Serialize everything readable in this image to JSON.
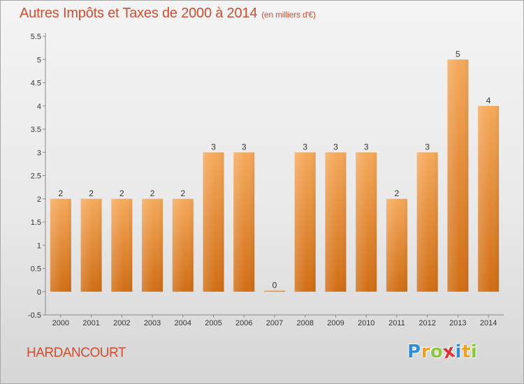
{
  "header": {
    "title": "Autres Impôts et Taxes de 2000 à 2014",
    "subtitle": "(en milliers d'€)"
  },
  "footer": {
    "commune": "HARDANCOURT",
    "logo_letters": [
      "P",
      "r",
      "o",
      "x",
      "i",
      "t",
      "i"
    ],
    "logo_colors": [
      "#2e8fd8",
      "#f0a020",
      "#8cc63f",
      "#e03030",
      "#2e8fd8",
      "#f0a020",
      "#8cc63f"
    ]
  },
  "chart_data": {
    "type": "bar",
    "title": "Autres Impôts et Taxes de 2000 à 2014",
    "subtitle": "(en milliers d'€)",
    "categories": [
      "2000",
      "2001",
      "2002",
      "2003",
      "2004",
      "2005",
      "2006",
      "2007",
      "2008",
      "2009",
      "2010",
      "2011",
      "2012",
      "2013",
      "2014"
    ],
    "values": [
      2,
      2,
      2,
      2,
      2,
      3,
      3,
      0,
      3,
      3,
      3,
      2,
      3,
      5,
      4
    ],
    "data_labels": [
      "2",
      "2",
      "2",
      "2",
      "2",
      "3",
      "3",
      "0",
      "3",
      "3",
      "3",
      "2",
      "3",
      "5",
      "4"
    ],
    "ylim": [
      -0.5,
      5.5
    ],
    "yticks": [
      -0.5,
      0,
      0.5,
      1,
      1.5,
      2,
      2.5,
      3,
      3.5,
      4,
      4.5,
      5,
      5.5
    ],
    "ytick_labels": [
      "-0.5",
      "0",
      "0.5",
      "1",
      "1.5",
      "2",
      "2.5",
      "3",
      "3.5",
      "4",
      "4.5",
      "5",
      "5.5"
    ],
    "grid": false,
    "bar_color": "#f08a2a"
  }
}
